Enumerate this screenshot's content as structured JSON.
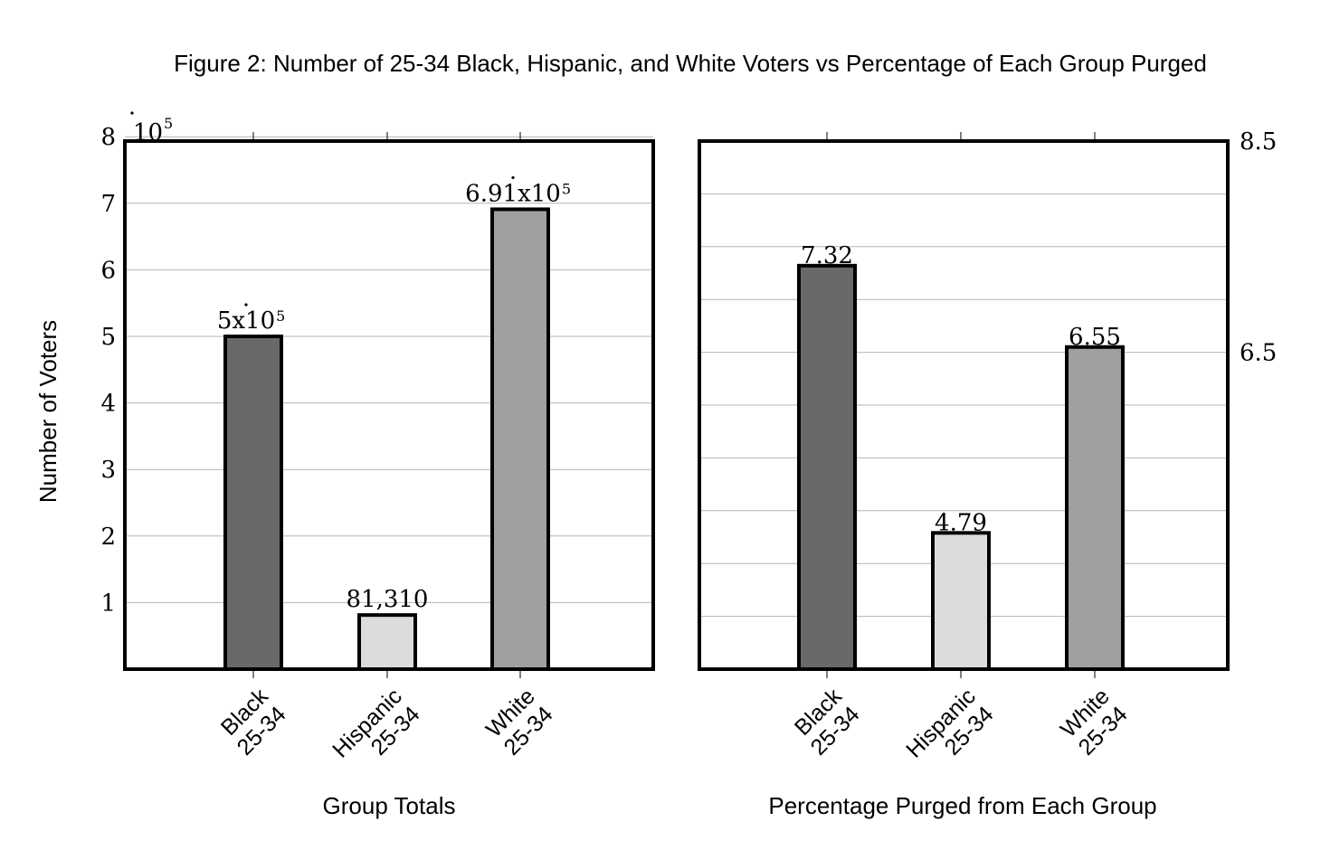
{
  "figure_title": "Figure 2: Number of 25-34 Black, Hispanic, and White Voters vs Percentage of Each Group Purged",
  "chart_data": [
    {
      "type": "bar",
      "title": "",
      "xlabel": "Group Totals",
      "ylabel": "Number of Voters",
      "y_multiplier": "10^5",
      "y_multiplier_base": "10",
      "y_multiplier_exp": "5",
      "ylim": [
        0,
        8
      ],
      "yticks": [
        1,
        2,
        3,
        4,
        5,
        6,
        7,
        8
      ],
      "grid": true,
      "categories": [
        {
          "line1": "Black",
          "line2": "25-34"
        },
        {
          "line1": "Hispanic",
          "line2": "25-34"
        },
        {
          "line1": "White",
          "line2": "25-34"
        }
      ],
      "values": [
        500000,
        81310,
        691000
      ],
      "labels": [
        {
          "text": "5x10",
          "exp": "5"
        },
        {
          "text": "81,310",
          "exp": ""
        },
        {
          "text": "6.91x10",
          "exp": "5"
        }
      ],
      "colors": [
        "#696969",
        "#dcdcdc",
        "#a0a0a0"
      ]
    },
    {
      "type": "bar",
      "title": "",
      "xlabel": "Percentage Purged from Each Group",
      "ylabel": "",
      "ylim": [
        3.5,
        8.5
      ],
      "yticks_labeled": [
        6.5,
        8.5
      ],
      "grid": true,
      "categories": [
        {
          "line1": "Black",
          "line2": "25-34"
        },
        {
          "line1": "Hispanic",
          "line2": "25-34"
        },
        {
          "line1": "White",
          "line2": "25-34"
        }
      ],
      "values": [
        7.32,
        4.79,
        6.55
      ],
      "labels": [
        {
          "text": "7.32",
          "exp": ""
        },
        {
          "text": "4.79",
          "exp": ""
        },
        {
          "text": "6.55",
          "exp": ""
        }
      ],
      "colors": [
        "#696969",
        "#dcdcdc",
        "#a0a0a0"
      ]
    }
  ]
}
